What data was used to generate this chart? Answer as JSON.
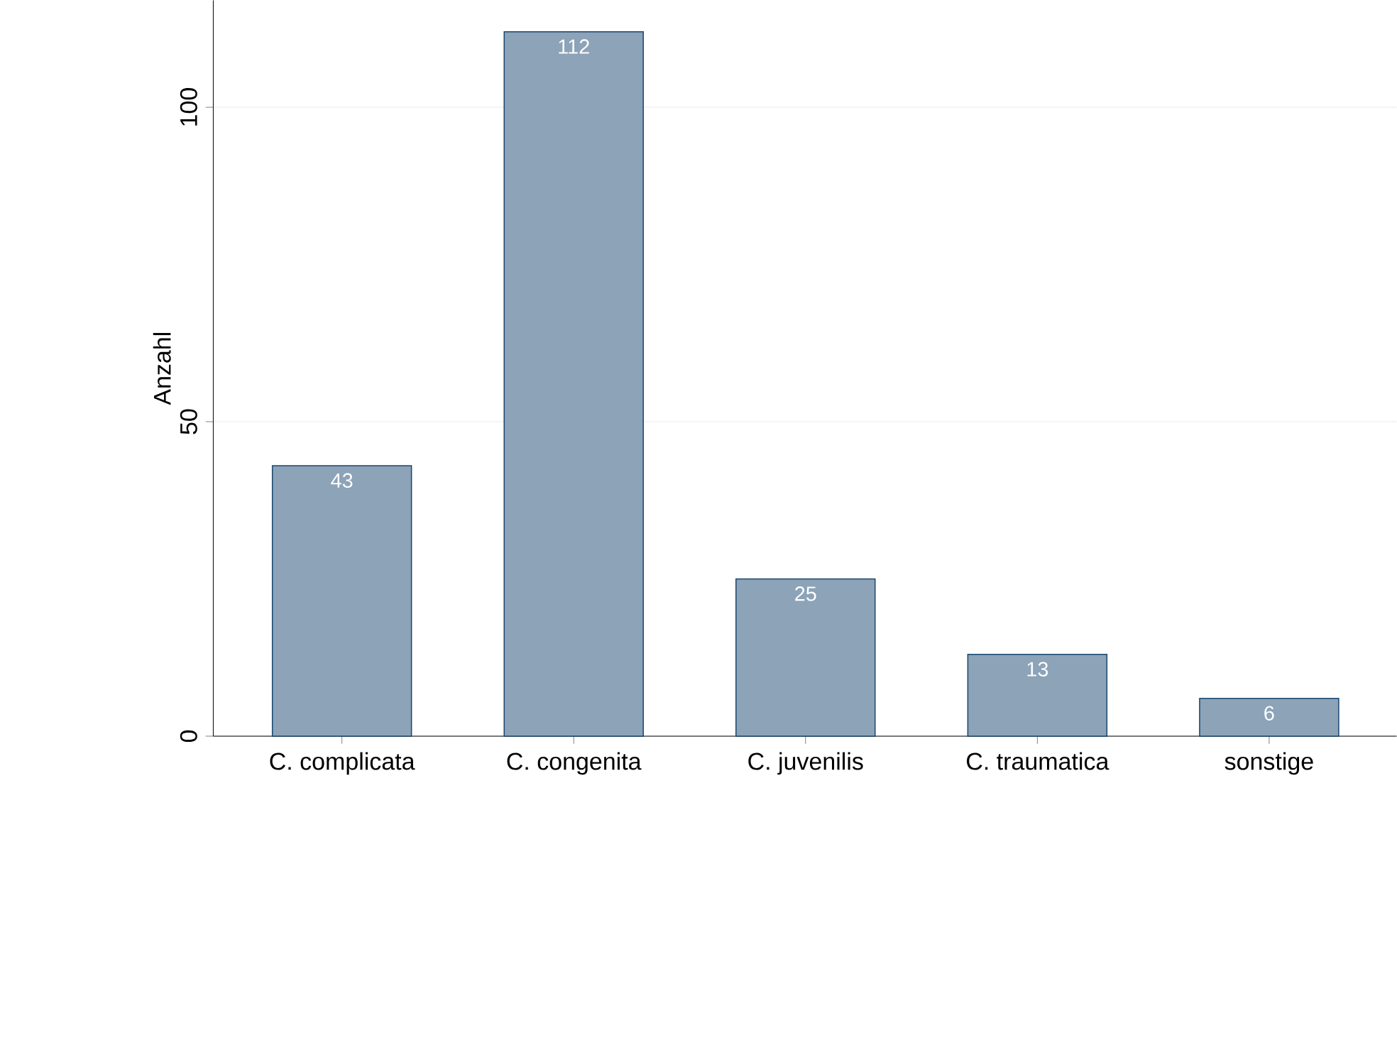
{
  "chart_data": {
    "type": "bar",
    "ylabel": "Anzahl",
    "categories": [
      "C. complicata",
      "C. congenita",
      "C. juvenilis",
      "C. traumatica",
      "sonstige"
    ],
    "values": [
      43,
      112,
      25,
      13,
      6
    ],
    "color": "#8ca3b8",
    "ylim": [
      0,
      117
    ],
    "yticks": [
      0,
      50,
      100
    ],
    "grid": "y",
    "data_labels": true
  }
}
